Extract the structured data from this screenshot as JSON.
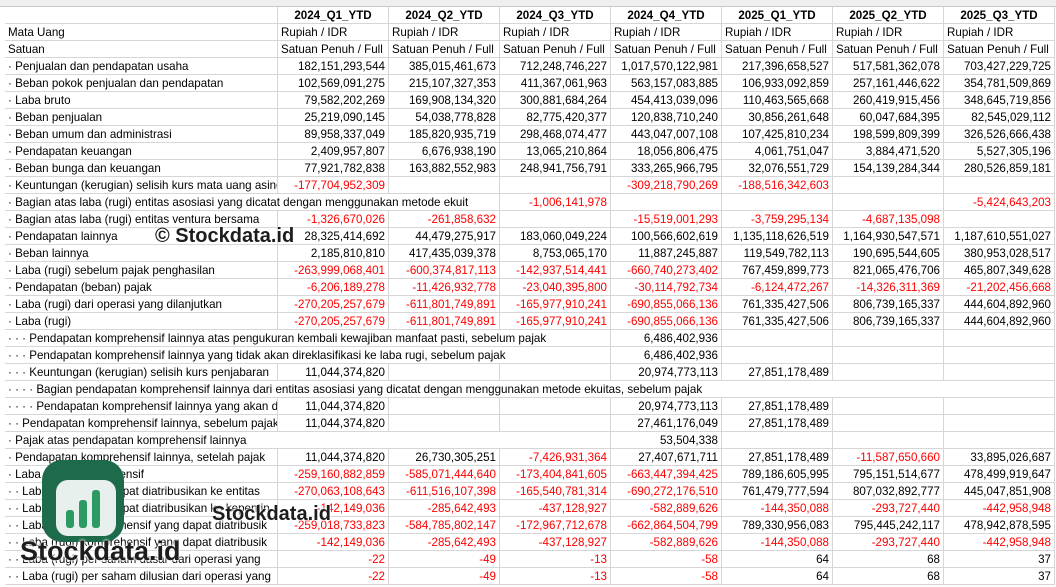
{
  "columns": [
    "2024_Q1_YTD",
    "2024_Q2_YTD",
    "2024_Q3_YTD",
    "2024_Q4_YTD",
    "2025_Q1_YTD",
    "2025_Q2_YTD",
    "2025_Q3_YTD"
  ],
  "meta_rows": [
    {
      "label": "Mata Uang",
      "values": [
        "Rupiah / IDR",
        "Rupiah / IDR",
        "Rupiah / IDR",
        "Rupiah / IDR",
        "Rupiah / IDR",
        "Rupiah / IDR",
        "Rupiah / IDR"
      ]
    },
    {
      "label": "Satuan",
      "values": [
        "Satuan Penuh / Full",
        "Satuan Penuh / Full",
        "Satuan Penuh / Full",
        "Satuan Penuh / Full",
        "Satuan Penuh / Full",
        "Satuan Penuh / Full",
        "Satuan Penuh / Full"
      ]
    }
  ],
  "rows": [
    {
      "label": "· Penjualan dan pendapatan usaha",
      "values": [
        "182,151,293,544",
        "385,015,461,673",
        "712,248,746,227",
        "1,017,570,122,981",
        "217,396,658,527",
        "517,581,362,078",
        "703,427,229,725"
      ]
    },
    {
      "label": "· Beban pokok penjualan dan pendapatan",
      "values": [
        "102,569,091,275",
        "215,107,327,353",
        "411,367,061,963",
        "563,157,083,885",
        "106,933,092,859",
        "257,161,446,622",
        "354,781,509,869"
      ]
    },
    {
      "label": "· Laba bruto",
      "values": [
        "79,582,202,269",
        "169,908,134,320",
        "300,881,684,264",
        "454,413,039,096",
        "110,463,565,668",
        "260,419,915,456",
        "348,645,719,856"
      ]
    },
    {
      "label": "· Beban penjualan",
      "values": [
        "25,219,090,145",
        "54,038,778,828",
        "82,775,420,377",
        "120,838,710,240",
        "30,856,261,648",
        "60,047,684,395",
        "82,545,029,112"
      ]
    },
    {
      "label": "· Beban umum dan administrasi",
      "values": [
        "89,958,337,049",
        "185,820,935,719",
        "298,468,074,477",
        "443,047,007,108",
        "107,425,810,234",
        "198,599,809,399",
        "326,526,666,438"
      ]
    },
    {
      "label": "· Pendapatan keuangan",
      "values": [
        "2,409,957,807",
        "6,676,938,190",
        "13,065,210,864",
        "18,056,806,475",
        "4,061,751,047",
        "3,884,471,520",
        "5,527,305,196"
      ]
    },
    {
      "label": "· Beban bunga dan keuangan",
      "values": [
        "77,921,782,838",
        "163,882,552,983",
        "248,941,756,791",
        "333,265,966,795",
        "32,076,551,729",
        "154,139,284,344",
        "280,526,859,181"
      ]
    },
    {
      "label": "· Keuntungan (kerugian) selisih kurs mata uang asing",
      "values": [
        "-177,704,952,309",
        null,
        null,
        "-309,218,790,269",
        "-188,516,342,603",
        null,
        null
      ]
    },
    {
      "label": "· Bagian atas laba (rugi) entitas asosiasi yang dicatat dengan menggunakan metode ekuit",
      "values": [
        null,
        null,
        "-1,006,141,978",
        null,
        null,
        null,
        "-5,424,643,203"
      ]
    },
    {
      "label": "· Bagian atas laba (rugi) entitas ventura bersama",
      "values": [
        "-1,326,670,026",
        "-261,858,632",
        null,
        "-15,519,001,293",
        "-3,759,295,134",
        "-4,687,135,098",
        null
      ]
    },
    {
      "label": "· Pendapatan lainnya",
      "values": [
        "28,325,414,692",
        "44,479,275,917",
        "183,060,049,224",
        "100,566,602,619",
        "1,135,118,626,519",
        "1,164,930,547,571",
        "1,187,610,551,027"
      ]
    },
    {
      "label": "· Beban lainnya",
      "values": [
        "2,185,810,810",
        "417,435,039,378",
        "8,753,065,170",
        "11,887,245,887",
        "119,549,782,113",
        "190,695,544,605",
        "380,953,028,517"
      ]
    },
    {
      "label": "· Laba (rugi) sebelum pajak penghasilan",
      "values": [
        "-263,999,068,401",
        "-600,374,817,113",
        "-142,937,514,441",
        "-660,740,273,402",
        "767,459,899,773",
        "821,065,476,706",
        "465,807,349,628"
      ]
    },
    {
      "label": "· Pendapatan (beban) pajak",
      "values": [
        "-6,206,189,278",
        "-11,426,932,778",
        "-23,040,395,800",
        "-30,114,792,734",
        "-6,124,472,267",
        "-14,326,311,369",
        "-21,202,456,668"
      ]
    },
    {
      "label": "· Laba (rugi) dari operasi yang dilanjutkan",
      "values": [
        "-270,205,257,679",
        "-611,801,749,891",
        "-165,977,910,241",
        "-690,855,066,136",
        "761,335,427,506",
        "806,739,165,337",
        "444,604,892,960"
      ]
    },
    {
      "label": "· Laba (rugi)",
      "values": [
        "-270,205,257,679",
        "-611,801,749,891",
        "-165,977,910,241",
        "-690,855,066,136",
        "761,335,427,506",
        "806,739,165,337",
        "444,604,892,960"
      ]
    },
    {
      "label": "· · · Pendapatan komprehensif lainnya atas pengukuran kembali kewajiban manfaat pasti, sebelum pajak",
      "values": [
        null,
        null,
        null,
        "6,486,402,936",
        null,
        null,
        null
      ]
    },
    {
      "label": "· · · Pendapatan komprehensif lainnya yang tidak akan direklasifikasi ke laba rugi, sebelum pajak",
      "values": [
        null,
        null,
        null,
        "6,486,402,936",
        null,
        null,
        null
      ]
    },
    {
      "label": "· · · Keuntungan (kerugian) selisih kurs penjabaran",
      "values": [
        "11,044,374,820",
        null,
        null,
        "20,974,773,113",
        "27,851,178,489",
        null,
        null
      ]
    },
    {
      "label": "· · · · Bagian pendapatan komprehensif lainnya dari entitas asosiasi yang dicatat dengan menggunakan metode ekuitas, sebelum pajak",
      "values": [
        null,
        null,
        null,
        null,
        null,
        null,
        null
      ]
    },
    {
      "label": "· · · · Pendapatan komprehensif lainnya yang akan direklasifikasi",
      "values": [
        "11,044,374,820",
        null,
        null,
        "20,974,773,113",
        "27,851,178,489",
        null,
        null
      ]
    },
    {
      "label": "· · Pendapatan komprehensif lainnya, sebelum pajak",
      "values": [
        "11,044,374,820",
        null,
        null,
        "27,461,176,049",
        "27,851,178,489",
        null,
        null
      ]
    },
    {
      "label": "· Pajak atas pendapatan komprehensif lainnya",
      "values": [
        null,
        null,
        null,
        "53,504,338",
        null,
        null,
        null
      ]
    },
    {
      "label": "· Pendapatan komprehensif lainnya, setelah pajak",
      "values": [
        "11,044,374,820",
        "26,730,305,251",
        "-7,426,931,364",
        "27,407,671,711",
        "27,851,178,489",
        "-11,587,650,660",
        "33,895,026,687"
      ]
    },
    {
      "label": "· Laba (rugi) komprehensif",
      "values": [
        "-259,160,882,859",
        "-585,071,444,640",
        "-173,404,841,605",
        "-663,447,394,425",
        "789,186,605,995",
        "795,151,514,677",
        "478,499,919,647"
      ]
    },
    {
      "label": "· · Laba (rugi) yang dapat diatribusikan ke entitas",
      "values": [
        "-270,063,108,643",
        "-611,516,107,398",
        "-165,540,781,314",
        "-690,272,176,510",
        "761,479,777,594",
        "807,032,892,777",
        "445,047,851,908"
      ]
    },
    {
      "label": "· · Laba (rugi) yang dapat diatribusikan ke kepentin",
      "values": [
        "-142,149,036",
        "-285,642,493",
        "-437,128,927",
        "-582,889,626",
        "-144,350,088",
        "-293,727,440",
        "-442,958,948"
      ]
    },
    {
      "label": "· · Laba (rugi) komprehensif yang dapat diatribusik",
      "values": [
        "-259,018,733,823",
        "-584,785,802,147",
        "-172,967,712,678",
        "-662,864,504,799",
        "789,330,956,083",
        "795,445,242,117",
        "478,942,878,595"
      ]
    },
    {
      "label": "· · Laba (rugi) komprehensif yang dapat diatribusik",
      "values": [
        "-142,149,036",
        "-285,642,493",
        "-437,128,927",
        "-582,889,626",
        "-144,350,088",
        "-293,727,440",
        "-442,958,948"
      ]
    },
    {
      "label": "· · Laba (rugi) per saham dasar dari operasi yang",
      "values": [
        "-22",
        "-49",
        "-13",
        "-58",
        "64",
        "68",
        "37"
      ]
    },
    {
      "label": "· · Laba (rugi) per saham dilusian dari operasi yang",
      "values": [
        "-22",
        "-49",
        "-13",
        "-58",
        "64",
        "68",
        "37"
      ]
    }
  ],
  "watermark": {
    "copyright": "© Stockdata.id",
    "site": "Stockdata.id",
    "brand": "Stockdata.id"
  }
}
